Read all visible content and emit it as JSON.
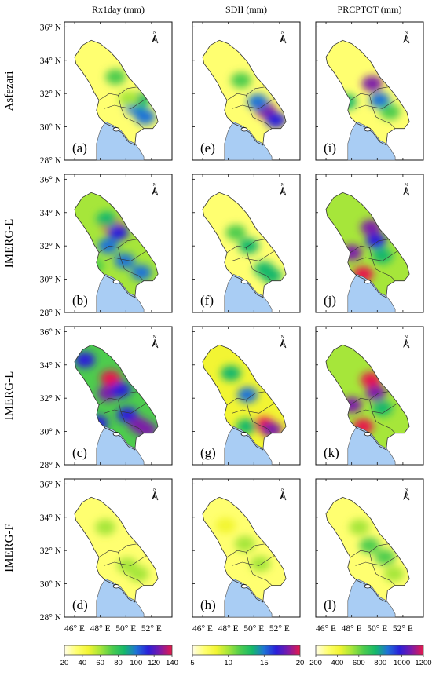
{
  "chart_data": {
    "type": "heatmap",
    "columns": [
      "Rx1day (mm)",
      "SDII (mm)",
      "PRCPTOT (mm)"
    ],
    "rows": [
      "Asfezari",
      "IMERG-E",
      "IMERG-L",
      "IMERG-F"
    ],
    "panel_labels": [
      [
        "(a)",
        "(e)",
        "(i)"
      ],
      [
        "(b)",
        "(f)",
        "(j)"
      ],
      [
        "(c)",
        "(g)",
        "(k)"
      ],
      [
        "(d)",
        "(h)",
        "(l)"
      ]
    ],
    "y_ticks": [
      "36° N",
      "34° N",
      "32° N",
      "30° N",
      "28° N"
    ],
    "y_tick_values": [
      36,
      34,
      32,
      30,
      28
    ],
    "x_ticks": [
      "46° E",
      "48° E",
      "50° E",
      "52° E"
    ],
    "x_tick_values": [
      46,
      48,
      50,
      52
    ],
    "xlim": [
      45.2,
      53.6
    ],
    "ylim": [
      28,
      36.3
    ],
    "north_arrow": "N",
    "colorbars": [
      {
        "column": "Rx1day (mm)",
        "range": [
          20,
          140
        ],
        "ticks": [
          "20",
          "40",
          "60",
          "80",
          "100",
          "120",
          "140"
        ],
        "tick_values": [
          20,
          40,
          60,
          80,
          100,
          120,
          140
        ]
      },
      {
        "column": "SDII (mm)",
        "range": [
          5,
          20
        ],
        "ticks": [
          "5",
          "10",
          "15",
          "20"
        ],
        "tick_values": [
          5,
          10,
          15,
          20
        ]
      },
      {
        "column": "PRCPTOT (mm)",
        "range": [
          200,
          1200
        ],
        "ticks": [
          "200",
          "400",
          "600",
          "800",
          "1000",
          "1200"
        ],
        "tick_values": [
          200,
          400,
          600,
          800,
          1000,
          1200
        ]
      }
    ],
    "colormap": [
      "#fffde8",
      "#ffff70",
      "#f2f533",
      "#a6e63a",
      "#4dcc4d",
      "#15b86a",
      "#1f73d6",
      "#2a1fd9",
      "#7d1aa8",
      "#e6194b"
    ],
    "water_color": "#a9cdf4"
  }
}
